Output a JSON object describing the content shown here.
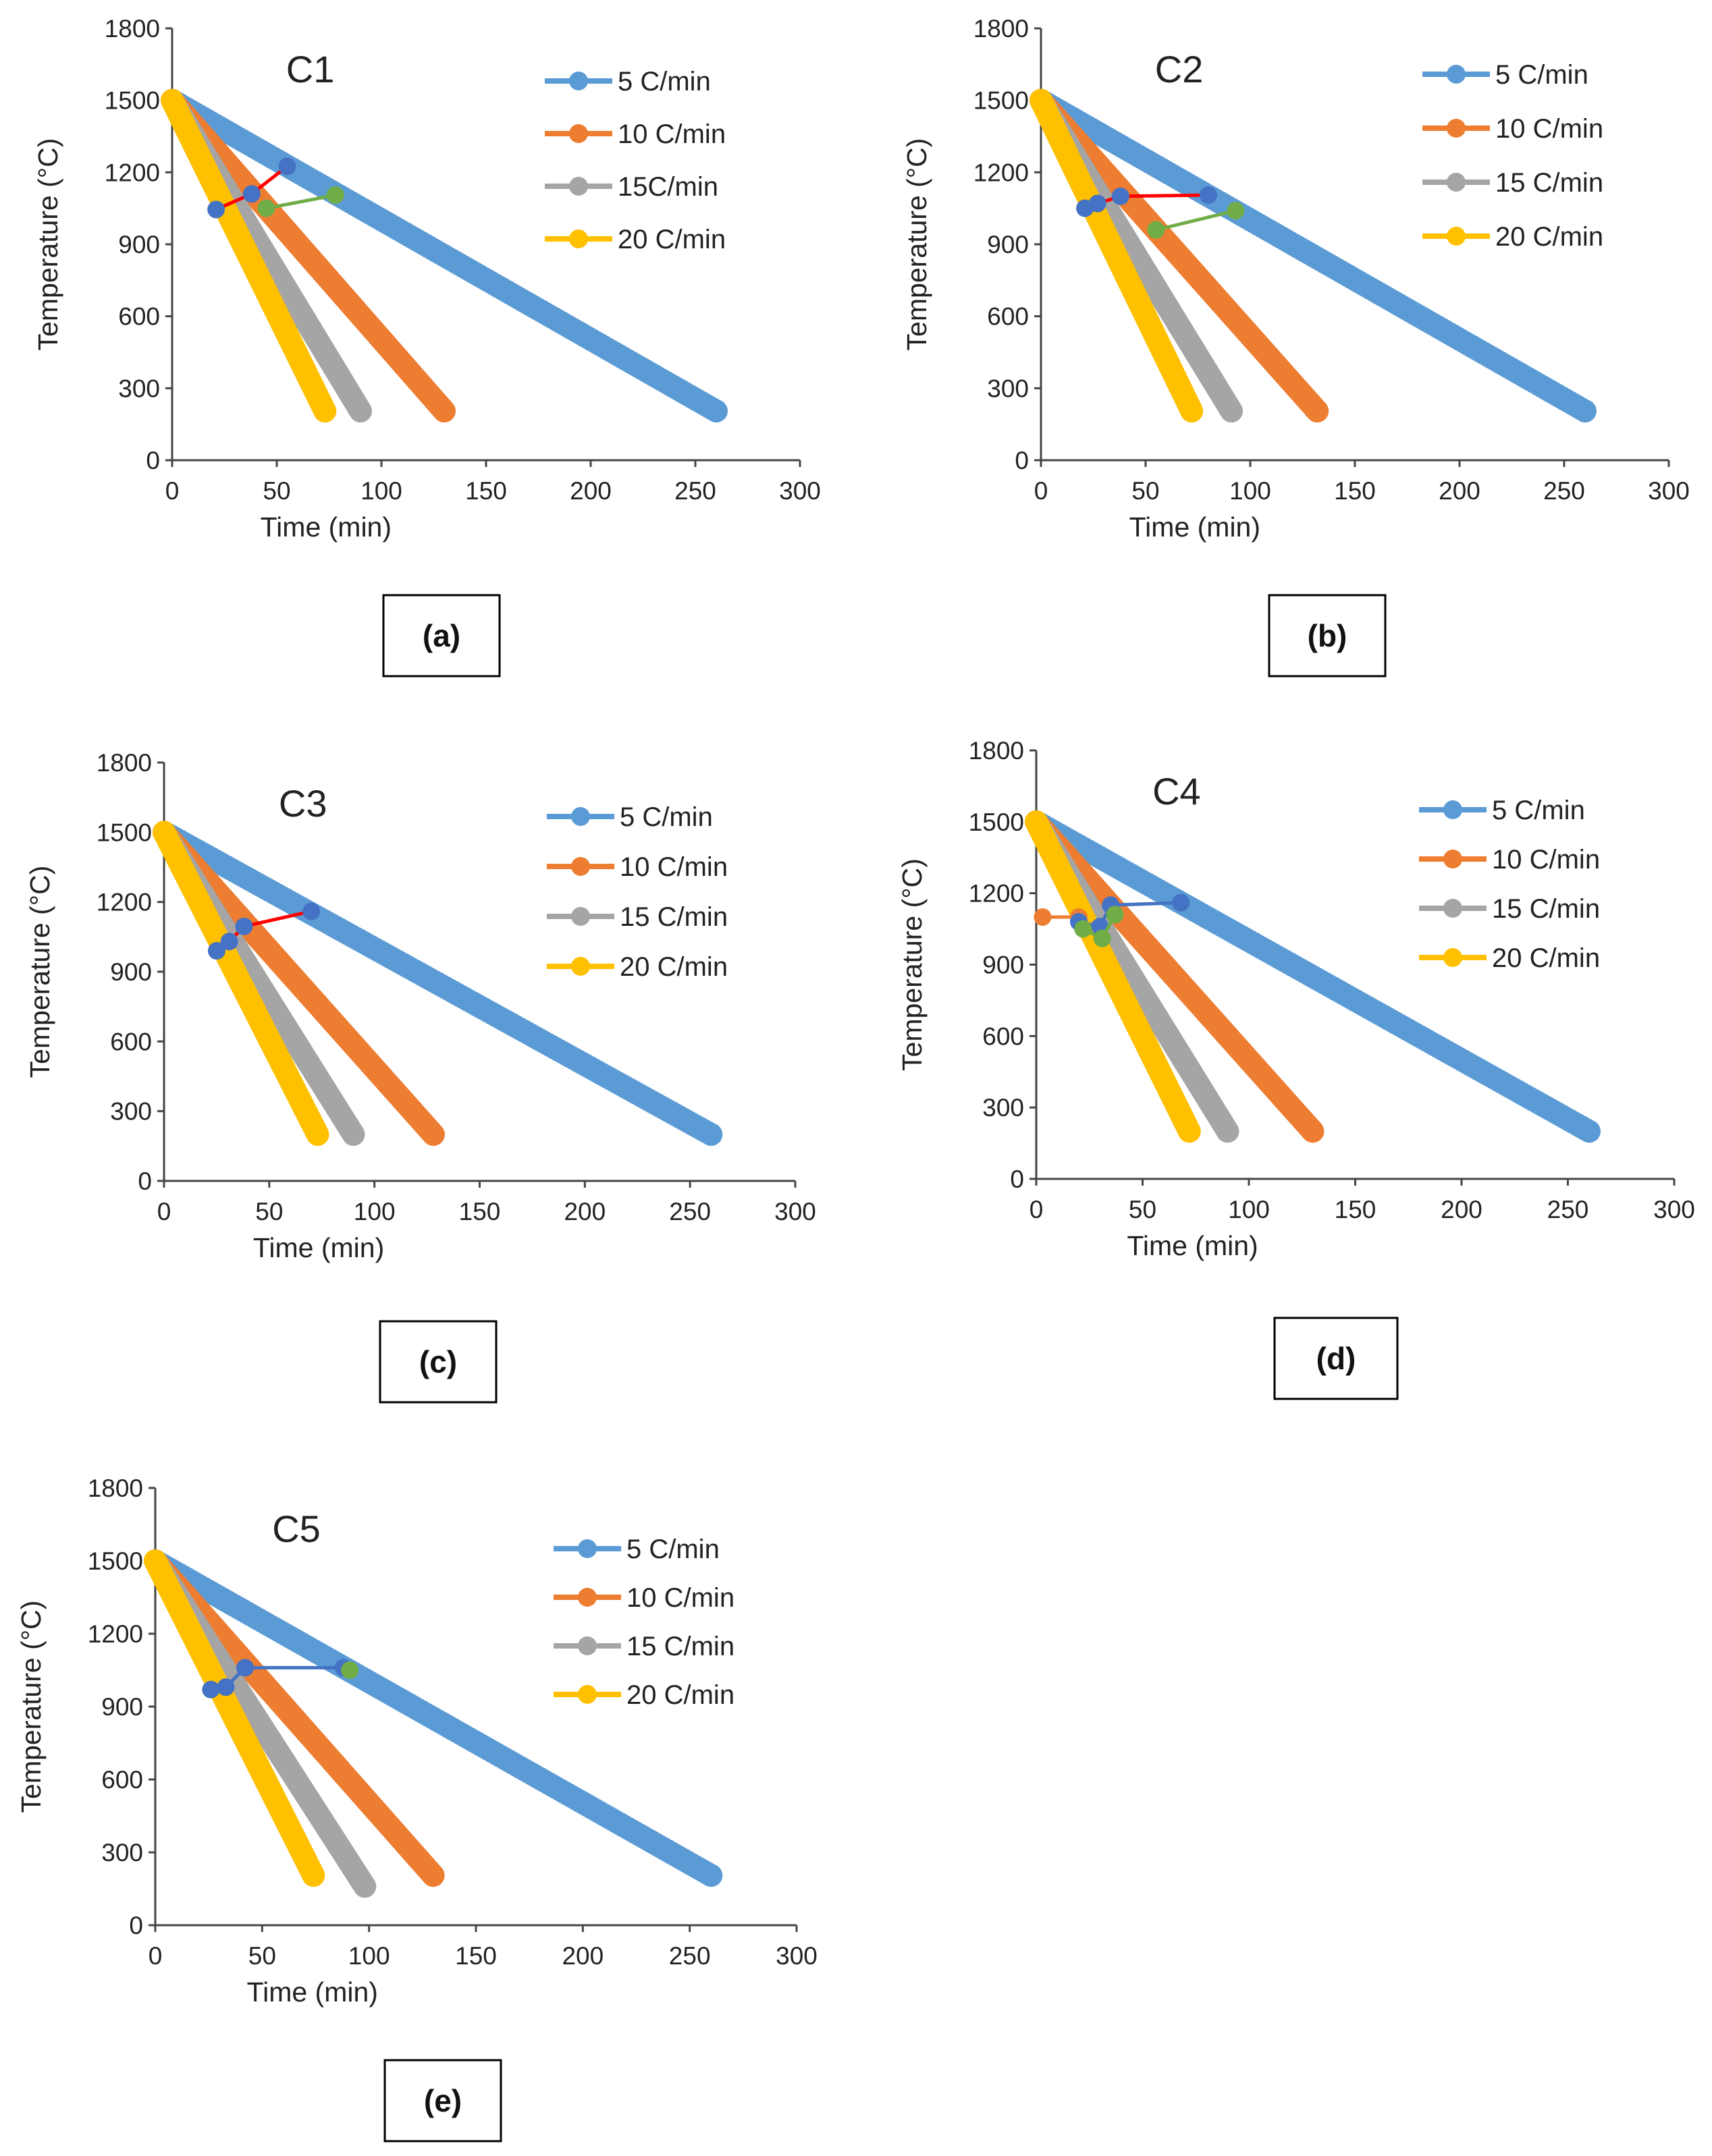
{
  "chart_data": [
    {
      "type": "scatter",
      "title": "C1",
      "panel_label": "(a)",
      "xlabel": "Time (min)",
      "ylabel": "Temperature (°C)",
      "xlim": [
        0,
        300
      ],
      "ylim": [
        0,
        1800
      ],
      "xticks": [
        "0",
        "50",
        "100",
        "150",
        "200",
        "250",
        "300"
      ],
      "yticks": [
        "0",
        "300",
        "600",
        "900",
        "1200",
        "1500",
        "1800"
      ],
      "series": [
        {
          "name": "5 C/min",
          "color": "#5b9bd5",
          "x": [
            0,
            260
          ],
          "y": [
            1500,
            205
          ]
        },
        {
          "name": "10 C/min",
          "color": "#ed7d31",
          "x": [
            0,
            130
          ],
          "y": [
            1500,
            205
          ]
        },
        {
          "name": "15C/min",
          "color": "#a5a5a5",
          "x": [
            0,
            90
          ],
          "y": [
            1500,
            205
          ]
        },
        {
          "name": "20 C/min",
          "color": "#ffc000",
          "x": [
            0,
            73
          ],
          "y": [
            1500,
            205
          ]
        }
      ],
      "annotations": [
        {
          "color": "#ff0000",
          "x": [
            21,
            38,
            55
          ],
          "y": [
            1045,
            1110,
            1225
          ]
        },
        {
          "color": "#70ad47",
          "x": [
            45,
            78
          ],
          "y": [
            1050,
            1105
          ]
        }
      ]
    },
    {
      "type": "scatter",
      "title": "C2",
      "panel_label": "(b)",
      "xlabel": "Time (min)",
      "ylabel": "Temperature (°C)",
      "xlim": [
        0,
        300
      ],
      "ylim": [
        0,
        1800
      ],
      "xticks": [
        "0",
        "50",
        "100",
        "150",
        "200",
        "250",
        "300"
      ],
      "yticks": [
        "0",
        "300",
        "600",
        "900",
        "1200",
        "1500",
        "1800"
      ],
      "series": [
        {
          "name": "5 C/min",
          "color": "#5b9bd5",
          "x": [
            0,
            260
          ],
          "y": [
            1500,
            205
          ]
        },
        {
          "name": "10 C/min",
          "color": "#ed7d31",
          "x": [
            0,
            132
          ],
          "y": [
            1500,
            205
          ]
        },
        {
          "name": "15 C/min",
          "color": "#a5a5a5",
          "x": [
            0,
            91
          ],
          "y": [
            1500,
            205
          ]
        },
        {
          "name": "20 C/min",
          "color": "#ffc000",
          "x": [
            0,
            72
          ],
          "y": [
            1500,
            205
          ]
        }
      ],
      "annotations": [
        {
          "color": "#ff0000",
          "x": [
            21,
            27,
            38,
            80
          ],
          "y": [
            1050,
            1070,
            1100,
            1105
          ]
        },
        {
          "color": "#70ad47",
          "x": [
            55,
            93
          ],
          "y": [
            960,
            1040
          ]
        }
      ]
    },
    {
      "type": "scatter",
      "title": "C3",
      "panel_label": "(c)",
      "xlabel": "Time (min)",
      "ylabel": "Temperature (°C)",
      "xlim": [
        0,
        300
      ],
      "ylim": [
        0,
        1800
      ],
      "xticks": [
        "0",
        "50",
        "100",
        "150",
        "200",
        "250",
        "300"
      ],
      "yticks": [
        "0",
        "300",
        "600",
        "900",
        "1200",
        "1500",
        "1800"
      ],
      "series": [
        {
          "name": "5 C/min",
          "color": "#5b9bd5",
          "x": [
            0,
            260
          ],
          "y": [
            1500,
            200
          ]
        },
        {
          "name": "10 C/min",
          "color": "#ed7d31",
          "x": [
            0,
            128
          ],
          "y": [
            1500,
            200
          ]
        },
        {
          "name": "15 C/min",
          "color": "#a5a5a5",
          "x": [
            0,
            90
          ],
          "y": [
            1500,
            200
          ]
        },
        {
          "name": "20 C/min",
          "color": "#ffc000",
          "x": [
            0,
            73
          ],
          "y": [
            1500,
            200
          ]
        }
      ],
      "annotations": [
        {
          "color": "#ff0000",
          "x": [
            25,
            31,
            38,
            70
          ],
          "y": [
            990,
            1030,
            1095,
            1160
          ]
        }
      ]
    },
    {
      "type": "scatter",
      "title": "C4",
      "panel_label": "(d)",
      "xlabel": "Time (min)",
      "ylabel": "Temperature (°C)",
      "xlim": [
        0,
        300
      ],
      "ylim": [
        0,
        1800
      ],
      "xticks": [
        "0",
        "50",
        "100",
        "150",
        "200",
        "250",
        "300"
      ],
      "yticks": [
        "0",
        "300",
        "600",
        "900",
        "1200",
        "1500",
        "1800"
      ],
      "series": [
        {
          "name": "5 C/min",
          "color": "#5b9bd5",
          "x": [
            0,
            260
          ],
          "y": [
            1500,
            200
          ]
        },
        {
          "name": "10 C/min",
          "color": "#ed7d31",
          "x": [
            0,
            130
          ],
          "y": [
            1500,
            200
          ]
        },
        {
          "name": "15 C/min",
          "color": "#a5a5a5",
          "x": [
            0,
            90
          ],
          "y": [
            1500,
            200
          ]
        },
        {
          "name": "20 C/min",
          "color": "#ffc000",
          "x": [
            0,
            72
          ],
          "y": [
            1500,
            200
          ]
        }
      ],
      "annotations": [
        {
          "color": "#ed7d31",
          "x": [
            3,
            20
          ],
          "y": [
            1100,
            1100
          ]
        },
        {
          "color": "#4472c4",
          "x": [
            20,
            30,
            35,
            68
          ],
          "y": [
            1080,
            1060,
            1150,
            1160
          ]
        },
        {
          "color": "#70ad47",
          "x": [
            22,
            31,
            37
          ],
          "y": [
            1050,
            1010,
            1110
          ]
        }
      ]
    },
    {
      "type": "scatter",
      "title": "C5",
      "panel_label": "(e)",
      "xlabel": "Time (min)",
      "ylabel": "Temperature (°C)",
      "xlim": [
        0,
        300
      ],
      "ylim": [
        0,
        1800
      ],
      "xticks": [
        "0",
        "50",
        "100",
        "150",
        "200",
        "250",
        "300"
      ],
      "yticks": [
        "0",
        "300",
        "600",
        "900",
        "1200",
        "1500",
        "1800"
      ],
      "series": [
        {
          "name": "5 C/min",
          "color": "#5b9bd5",
          "x": [
            0,
            260
          ],
          "y": [
            1500,
            205
          ]
        },
        {
          "name": "10 C/min",
          "color": "#ed7d31",
          "x": [
            0,
            130
          ],
          "y": [
            1500,
            205
          ]
        },
        {
          "name": "15 C/min",
          "color": "#a5a5a5",
          "x": [
            0,
            98
          ],
          "y": [
            1500,
            160
          ]
        },
        {
          "name": "20 C/min",
          "color": "#ffc000",
          "x": [
            0,
            74
          ],
          "y": [
            1500,
            205
          ]
        }
      ],
      "annotations": [
        {
          "color": "#4472c4",
          "x": [
            26,
            33,
            42,
            88
          ],
          "y": [
            970,
            980,
            1060,
            1060
          ]
        },
        {
          "color": "#70ad47",
          "x": [
            91
          ],
          "y": [
            1050
          ]
        }
      ]
    }
  ]
}
